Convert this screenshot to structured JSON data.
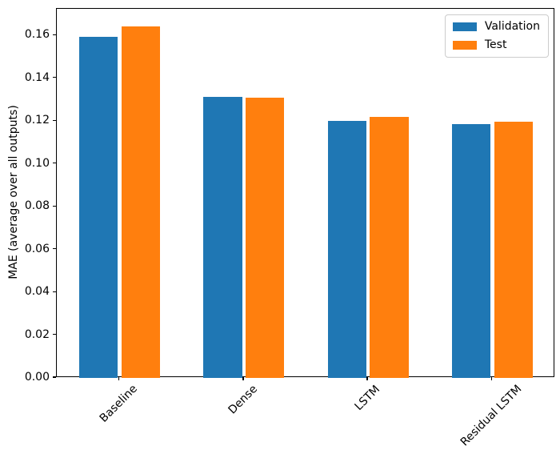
{
  "chart_data": {
    "type": "bar",
    "title": "",
    "xlabel": "",
    "ylabel": "MAE (average over all outputs)",
    "categories": [
      "Baseline",
      "Dense",
      "LSTM",
      "Residual LSTM"
    ],
    "series": [
      {
        "name": "Validation",
        "color": "#1f77b4",
        "values": [
          0.1595,
          0.1312,
          0.1203,
          0.1186
        ]
      },
      {
        "name": "Test",
        "color": "#ff7f0e",
        "values": [
          0.1642,
          0.131,
          0.1221,
          0.1196
        ]
      }
    ],
    "yticks": [
      0.0,
      0.02,
      0.04,
      0.06,
      0.08,
      0.1,
      0.12,
      0.14,
      0.16
    ],
    "ytick_label_format": "2dp",
    "ylim": [
      0,
      0.1725
    ],
    "xlim": [
      -0.5075,
      3.5075
    ],
    "bar_width": 0.31,
    "bar_offset": 0.17,
    "xtick_rotation_deg": 45,
    "grid": false,
    "legend": {
      "position": "upper-right",
      "entries": [
        "Validation",
        "Test"
      ]
    }
  }
}
